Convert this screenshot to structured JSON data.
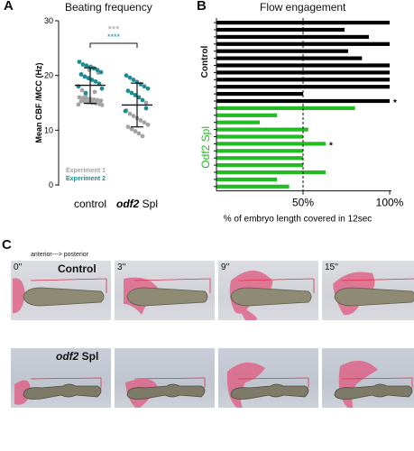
{
  "panels": {
    "a": {
      "letter": "A",
      "title": "Beating frequency"
    },
    "b": {
      "letter": "B",
      "title": "Flow engagement"
    },
    "c": {
      "letter": "C"
    }
  },
  "chart_data": [
    {
      "type": "scatter",
      "title": "Beating frequency",
      "ylabel": "Mean CBF /MCC (Hz)",
      "xlabel": "",
      "ylim": [
        0,
        30
      ],
      "yticks": [
        0,
        10,
        20,
        30
      ],
      "categories": [
        "control",
        "odf2 Spl"
      ],
      "category_labels": [
        {
          "italic": "",
          "plain": "control"
        },
        {
          "italic": "odf2",
          "plain": " Spl"
        }
      ],
      "significance": {
        "experiment1": "***",
        "experiment2": "****"
      },
      "legend": [
        "Experiment 1",
        "Experiment 2"
      ],
      "colors": {
        "experiment1": "#a3a3a3",
        "experiment2": "#1c8c93"
      },
      "summary": {
        "control": {
          "mean": 18.2,
          "sd_low": 14.9,
          "sd_high": 21.4
        },
        "odf2 Spl": {
          "mean": 14.6,
          "sd_low": 10.6,
          "sd_high": 18.6
        }
      },
      "series": [
        {
          "name": "Experiment 1",
          "group": "control",
          "values": [
            16.0,
            15.9,
            15.8,
            15.7,
            15.6,
            15.5,
            15.4,
            15.3,
            15.2,
            15.1,
            15.0,
            14.9,
            14.8,
            14.7,
            14.6,
            16.5,
            17.0,
            17.3,
            20.5,
            21.0,
            21.6
          ]
        },
        {
          "name": "Experiment 2",
          "group": "control",
          "values": [
            22.5,
            22.0,
            21.8,
            21.5,
            21.3,
            21.0,
            20.6,
            20.2,
            19.8,
            19.5,
            19.2,
            18.9,
            18.5,
            18.0,
            17.6,
            16.8
          ]
        },
        {
          "name": "Experiment 1",
          "group": "odf2 Spl",
          "values": [
            13.6,
            13.0,
            12.6,
            12.2,
            11.8,
            11.4,
            11.0,
            10.6,
            10.2,
            9.8,
            9.4,
            8.9,
            15.0
          ]
        },
        {
          "name": "Experiment 2",
          "group": "odf2 Spl",
          "values": [
            20.0,
            19.6,
            19.2,
            18.8,
            18.4,
            18.0,
            17.6,
            17.2,
            16.8,
            16.4,
            16.0,
            15.5,
            14.0,
            13.5
          ]
        }
      ]
    },
    {
      "type": "bar",
      "orientation": "horizontal",
      "title": "Flow engagement",
      "xlabel": "% of embryo length covered in 12sec",
      "xticks": [
        "50%",
        "100%"
      ],
      "xlim": [
        0,
        100
      ],
      "reference_line": 50,
      "groups": [
        {
          "name": "Control",
          "color": "#000000",
          "values": [
            100,
            74,
            88,
            100,
            76,
            84,
            100,
            100,
            100,
            100,
            50,
            100
          ],
          "marked": [
            11
          ]
        },
        {
          "name": "Odf2 Spl",
          "color": "#22bb22",
          "values": [
            80,
            35,
            25,
            53,
            50,
            63,
            50,
            50,
            50,
            63,
            35,
            42
          ],
          "marked": [
            5
          ]
        }
      ],
      "marker_symbol": "*"
    }
  ],
  "panel_c": {
    "caption": "anterior---> posterior",
    "rows": [
      {
        "label": "Control",
        "label_italic": "",
        "label_plain": "Control"
      },
      {
        "label": "odf2 Spl",
        "label_italic": "odf2",
        "label_plain": " Spl"
      }
    ],
    "timepoints": [
      "0''",
      "3''",
      "9''",
      "15''"
    ]
  }
}
